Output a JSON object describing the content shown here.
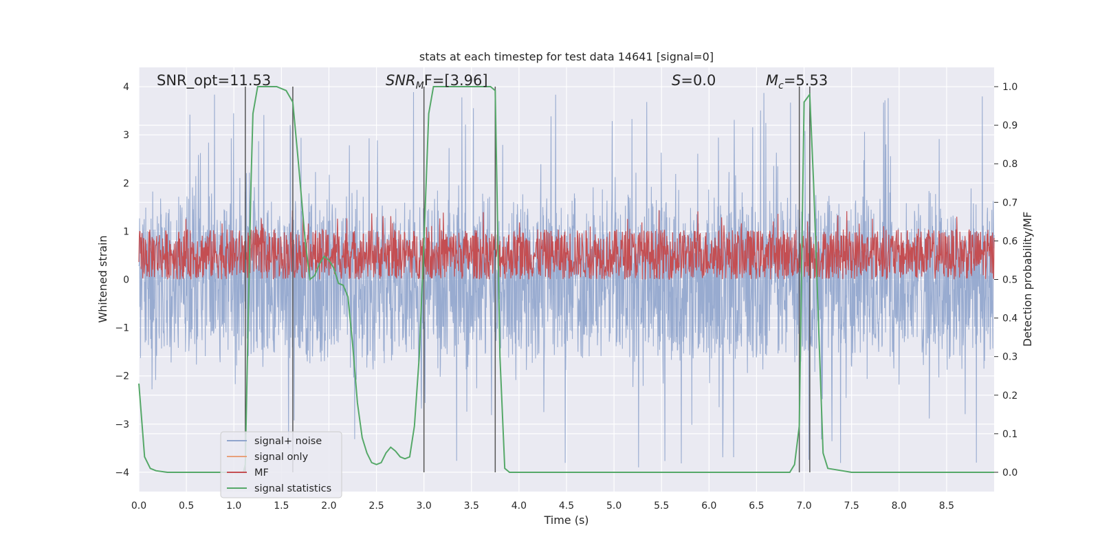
{
  "chart_data": {
    "type": "line",
    "title": "stats at each timestep for test data 14641 [signal=0]",
    "xlabel": "Time (s)",
    "ylabel_left": "Whitened strain",
    "ylabel_right": "Detection probability/MF",
    "xlim": [
      0.0,
      9.0
    ],
    "ylim_left": [
      -4.4,
      4.4
    ],
    "ylim_right": [
      -0.05,
      1.05
    ],
    "x_ticks": [
      0.0,
      0.5,
      1.0,
      1.5,
      2.0,
      2.5,
      3.0,
      3.5,
      4.0,
      4.5,
      5.0,
      5.5,
      6.0,
      6.5,
      7.0,
      7.5,
      8.0,
      8.5
    ],
    "x_tick_labels": [
      "0.0",
      "0.5",
      "1.0",
      "1.5",
      "2.0",
      "2.5",
      "3.0",
      "3.5",
      "4.0",
      "4.5",
      "5.0",
      "5.5",
      "6.0",
      "6.5",
      "7.0",
      "7.5",
      "8.0",
      "8.5"
    ],
    "y_left_ticks": [
      -4,
      -3,
      -2,
      -1,
      0,
      1,
      2,
      3,
      4
    ],
    "y_left_tick_labels": [
      "−4",
      "−3",
      "−2",
      "−1",
      "0",
      "1",
      "2",
      "3",
      "4"
    ],
    "y_right_ticks": [
      0.0,
      0.1,
      0.2,
      0.3,
      0.4,
      0.5,
      0.6,
      0.7,
      0.8,
      0.9,
      1.0
    ],
    "y_right_tick_labels": [
      "0.0",
      "0.1",
      "0.2",
      "0.3",
      "0.4",
      "0.5",
      "0.6",
      "0.7",
      "0.8",
      "0.9",
      "1.0"
    ],
    "annotations": {
      "snr_opt": "SNR_opt=11.53",
      "snr_mf_base": "SNR",
      "snr_mf_sub": "M",
      "snr_mf_rest": "F=[3.96]",
      "s_italic": "S",
      "s_rest": "=0.0",
      "mc_base": "M",
      "mc_sub": "c",
      "mc_rest": "=5.53"
    },
    "vertical_markers": [
      1.12,
      1.62,
      3.0,
      3.75,
      6.95,
      7.06
    ],
    "noise_band": {
      "typical_upper": 2.0,
      "typical_lower": -2.0,
      "peak_max": 3.9,
      "peak_min": -3.9
    },
    "mf_band": {
      "lower": 0.5,
      "upper": 0.63,
      "peak": 0.68
    },
    "series": [
      {
        "name": "signal+ noise",
        "color": "#8fa4cc",
        "axis": "left",
        "style": "dense-noise"
      },
      {
        "name": "signal only",
        "color": "#e8a07a",
        "axis": "left",
        "values": []
      },
      {
        "name": "MF",
        "color": "#c44e52",
        "axis": "right",
        "style": "dense-band"
      },
      {
        "name": "signal statistics",
        "color": "#55a868",
        "axis": "right",
        "x": [
          0.0,
          0.06,
          0.12,
          0.18,
          0.3,
          0.6,
          1.0,
          1.1,
          1.12,
          1.15,
          1.18,
          1.2,
          1.25,
          1.35,
          1.45,
          1.55,
          1.62,
          1.68,
          1.75,
          1.8,
          1.85,
          1.9,
          1.95,
          2.0,
          2.05,
          2.1,
          2.15,
          2.2,
          2.25,
          2.3,
          2.35,
          2.4,
          2.45,
          2.5,
          2.55,
          2.6,
          2.65,
          2.7,
          2.75,
          2.8,
          2.85,
          2.9,
          2.95,
          3.0,
          3.05,
          3.1,
          3.15,
          3.3,
          3.5,
          3.7,
          3.75,
          3.8,
          3.85,
          3.9,
          4.2,
          5.0,
          6.0,
          6.85,
          6.9,
          6.95,
          7.0,
          7.06,
          7.1,
          7.15,
          7.2,
          7.25,
          7.5,
          8.0,
          8.5,
          9.0
        ],
        "values": [
          0.23,
          0.04,
          0.01,
          0.004,
          0.0,
          0.0,
          0.0,
          0.0,
          0.02,
          0.4,
          0.75,
          0.93,
          1.0,
          1.0,
          1.0,
          0.99,
          0.96,
          0.8,
          0.6,
          0.5,
          0.51,
          0.54,
          0.56,
          0.55,
          0.53,
          0.49,
          0.485,
          0.455,
          0.33,
          0.18,
          0.09,
          0.05,
          0.025,
          0.02,
          0.025,
          0.05,
          0.065,
          0.055,
          0.04,
          0.035,
          0.04,
          0.12,
          0.3,
          0.6,
          0.93,
          1.0,
          1.0,
          1.0,
          1.0,
          1.0,
          0.99,
          0.3,
          0.01,
          0.0,
          0.0,
          0.0,
          0.0,
          0.0,
          0.02,
          0.12,
          0.96,
          0.98,
          0.75,
          0.4,
          0.05,
          0.01,
          0.0,
          0.0,
          0.0,
          0.0
        ]
      }
    ],
    "legend": {
      "position": "lower-left",
      "entries": [
        "signal+ noise",
        "signal only",
        "MF",
        "signal statistics"
      ]
    },
    "grid": true
  }
}
